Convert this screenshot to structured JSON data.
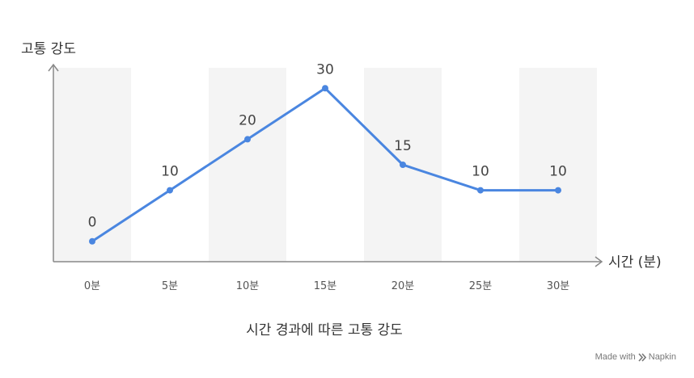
{
  "chart_data": {
    "type": "line",
    "categories": [
      "0분",
      "5분",
      "10분",
      "15분",
      "20분",
      "25분",
      "30분"
    ],
    "values": [
      0,
      10,
      20,
      30,
      15,
      10,
      10
    ],
    "data_labels": [
      "0",
      "10",
      "20",
      "30",
      "15",
      "10",
      "10"
    ],
    "ylabel": "고통 강도",
    "xlabel": "시간 (분)",
    "caption": "시간 경과에 따른 고통 강도",
    "ylim": [
      -4,
      34
    ],
    "grid": false,
    "legend": "none",
    "colors": {
      "line": "#4a86e0",
      "band": "#f4f4f4",
      "axis": "#888888"
    }
  },
  "credit": {
    "prefix": "Made with",
    "brand": "Napkin"
  }
}
